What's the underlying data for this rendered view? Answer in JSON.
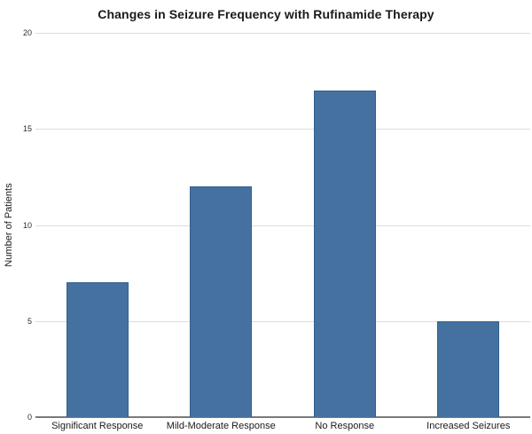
{
  "chart_data": {
    "type": "bar",
    "title": "Changes in Seizure Frequency with Rufinamide Therapy",
    "categories": [
      "Significant Response",
      "Mild-Moderate Response",
      "No Response",
      "Increased Seizures"
    ],
    "values": [
      7,
      12,
      17,
      5
    ],
    "xlabel": "",
    "ylabel": "Number of Patients",
    "ylim": [
      0,
      20
    ],
    "yticks": [
      0,
      5,
      10,
      15,
      20
    ],
    "grid": true,
    "legend": "none",
    "colors": {
      "bar_fill": "#44719F",
      "bar_border": "#35608F",
      "gridline": "#dcdcdc",
      "axis_line": "#7a7a7a",
      "text": "#1a1a1a"
    }
  }
}
